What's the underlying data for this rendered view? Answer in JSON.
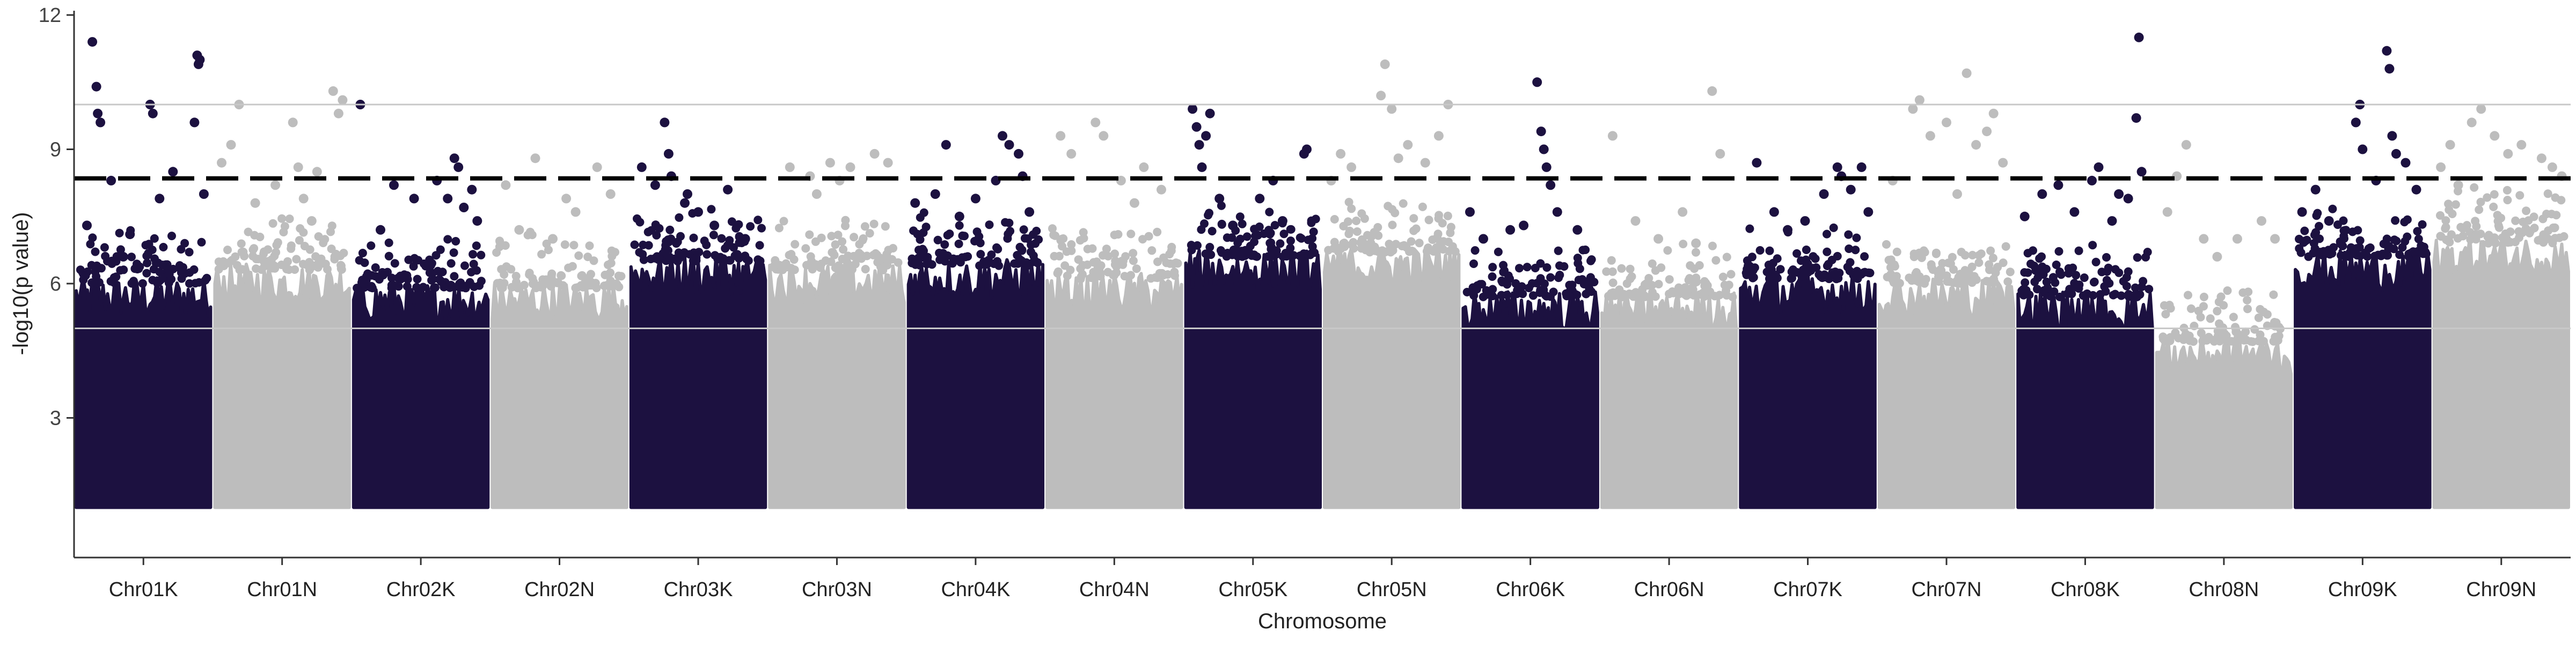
{
  "chart_data": {
    "type": "scatter",
    "title": "",
    "xlabel": "Chromosome",
    "ylabel": "-log10(p value)",
    "ylim": [
      0,
      12
    ],
    "yticks": [
      3,
      6,
      9,
      12
    ],
    "grid": "horizontal reference lines only",
    "legend": "none",
    "reference_lines": [
      {
        "name": "",
        "y": 5,
        "style": "solid",
        "color": "#c8c8c8"
      },
      {
        "name": "",
        "y": 10,
        "style": "solid",
        "color": "#c8c8c8"
      },
      {
        "name": "",
        "y": 8.35,
        "style": "dashed",
        "color": "#000000"
      }
    ],
    "colors": {
      "odd": "#1c1140",
      "even": "#bdbdbd"
    },
    "categories": [
      "Chr01K",
      "Chr01N",
      "Chr02K",
      "Chr02N",
      "Chr03K",
      "Chr03N",
      "Chr04K",
      "Chr04N",
      "Chr05K",
      "Chr05N",
      "Chr06K",
      "Chr06N",
      "Chr07K",
      "Chr07N",
      "Chr08K",
      "Chr08N",
      "Chr09K",
      "Chr09N"
    ],
    "series": [
      {
        "category": "Chr01K",
        "color": "#1c1140",
        "bulk_top": 6.3,
        "min": 1.0,
        "top_points": [
          [
            0.12,
            11.4
          ],
          [
            0.15,
            10.4
          ],
          [
            0.16,
            9.8
          ],
          [
            0.18,
            9.6
          ],
          [
            0.26,
            8.3
          ],
          [
            0.55,
            10.0
          ],
          [
            0.57,
            9.8
          ],
          [
            0.62,
            7.9
          ],
          [
            0.72,
            8.5
          ],
          [
            0.88,
            9.6
          ],
          [
            0.9,
            11.1
          ],
          [
            0.92,
            11.0
          ],
          [
            0.95,
            8.0
          ],
          [
            0.91,
            10.9
          ],
          [
            0.4,
            7.1
          ],
          [
            0.35,
            6.6
          ],
          [
            0.08,
            7.3
          ]
        ]
      },
      {
        "category": "Chr01N",
        "color": "#bdbdbd",
        "bulk_top": 6.6,
        "min": 1.0,
        "top_points": [
          [
            0.05,
            8.7
          ],
          [
            0.12,
            9.1
          ],
          [
            0.18,
            10.0
          ],
          [
            0.3,
            7.8
          ],
          [
            0.45,
            8.2
          ],
          [
            0.58,
            9.6
          ],
          [
            0.62,
            8.6
          ],
          [
            0.76,
            8.5
          ],
          [
            0.88,
            10.3
          ],
          [
            0.92,
            9.8
          ],
          [
            0.95,
            10.1
          ],
          [
            0.72,
            7.4
          ],
          [
            0.66,
            7.9
          ]
        ]
      },
      {
        "category": "Chr02K",
        "color": "#1c1140",
        "bulk_top": 6.2,
        "min": 1.0,
        "top_points": [
          [
            0.05,
            10.0
          ],
          [
            0.3,
            8.2
          ],
          [
            0.45,
            7.9
          ],
          [
            0.62,
            8.3
          ],
          [
            0.75,
            8.8
          ],
          [
            0.78,
            8.6
          ],
          [
            0.82,
            7.7
          ],
          [
            0.88,
            8.1
          ],
          [
            0.92,
            7.4
          ],
          [
            0.2,
            7.2
          ],
          [
            0.7,
            7.9
          ]
        ]
      },
      {
        "category": "Chr02N",
        "color": "#bdbdbd",
        "bulk_top": 6.2,
        "min": 1.0,
        "top_points": [
          [
            0.1,
            8.2
          ],
          [
            0.32,
            8.8
          ],
          [
            0.55,
            7.9
          ],
          [
            0.62,
            7.6
          ],
          [
            0.78,
            8.6
          ],
          [
            0.88,
            8.0
          ],
          [
            0.2,
            7.2
          ],
          [
            0.45,
            7.0
          ]
        ]
      },
      {
        "category": "Chr03K",
        "color": "#1c1140",
        "bulk_top": 6.8,
        "min": 1.0,
        "top_points": [
          [
            0.08,
            8.6
          ],
          [
            0.18,
            8.2
          ],
          [
            0.25,
            9.6
          ],
          [
            0.28,
            8.9
          ],
          [
            0.3,
            8.4
          ],
          [
            0.42,
            8.0
          ],
          [
            0.5,
            7.6
          ],
          [
            0.62,
            7.3
          ],
          [
            0.72,
            8.1
          ],
          [
            0.85,
            7.0
          ],
          [
            0.4,
            7.8
          ]
        ]
      },
      {
        "category": "Chr03N",
        "color": "#bdbdbd",
        "bulk_top": 6.6,
        "min": 1.0,
        "top_points": [
          [
            0.15,
            8.6
          ],
          [
            0.3,
            8.4
          ],
          [
            0.45,
            8.7
          ],
          [
            0.6,
            8.6
          ],
          [
            0.78,
            8.9
          ],
          [
            0.88,
            8.7
          ],
          [
            0.52,
            8.3
          ],
          [
            0.35,
            8.0
          ]
        ]
      },
      {
        "category": "Chr04K",
        "color": "#1c1140",
        "bulk_top": 6.7,
        "min": 1.0,
        "top_points": [
          [
            0.05,
            7.8
          ],
          [
            0.2,
            8.0
          ],
          [
            0.28,
            9.1
          ],
          [
            0.38,
            7.5
          ],
          [
            0.5,
            7.9
          ],
          [
            0.65,
            8.3
          ],
          [
            0.7,
            9.3
          ],
          [
            0.75,
            9.1
          ],
          [
            0.82,
            8.9
          ],
          [
            0.85,
            8.4
          ],
          [
            0.9,
            7.6
          ]
        ]
      },
      {
        "category": "Chr04N",
        "color": "#bdbdbd",
        "bulk_top": 6.4,
        "min": 1.0,
        "top_points": [
          [
            0.1,
            9.3
          ],
          [
            0.18,
            8.9
          ],
          [
            0.36,
            9.6
          ],
          [
            0.42,
            9.3
          ],
          [
            0.55,
            8.3
          ],
          [
            0.72,
            8.6
          ],
          [
            0.85,
            8.1
          ],
          [
            0.65,
            7.8
          ]
        ]
      },
      {
        "category": "Chr05K",
        "color": "#1c1140",
        "bulk_top": 6.9,
        "min": 1.0,
        "top_points": [
          [
            0.05,
            9.9
          ],
          [
            0.08,
            9.5
          ],
          [
            0.1,
            9.1
          ],
          [
            0.12,
            8.6
          ],
          [
            0.15,
            9.3
          ],
          [
            0.18,
            9.8
          ],
          [
            0.25,
            7.9
          ],
          [
            0.35,
            7.3
          ],
          [
            0.55,
            7.9
          ],
          [
            0.65,
            8.3
          ],
          [
            0.9,
            9.0
          ],
          [
            0.88,
            8.9
          ],
          [
            0.72,
            7.4
          ]
        ]
      },
      {
        "category": "Chr05N",
        "color": "#bdbdbd",
        "bulk_top": 7.0,
        "min": 1.0,
        "top_points": [
          [
            0.05,
            8.3
          ],
          [
            0.12,
            8.9
          ],
          [
            0.2,
            8.6
          ],
          [
            0.42,
            10.2
          ],
          [
            0.45,
            10.9
          ],
          [
            0.5,
            9.9
          ],
          [
            0.62,
            9.1
          ],
          [
            0.75,
            8.7
          ],
          [
            0.85,
            9.3
          ],
          [
            0.92,
            10.0
          ],
          [
            0.55,
            8.8
          ]
        ]
      },
      {
        "category": "Chr06K",
        "color": "#1c1140",
        "bulk_top": 6.0,
        "min": 1.0,
        "top_points": [
          [
            0.05,
            7.6
          ],
          [
            0.15,
            7.0
          ],
          [
            0.35,
            7.2
          ],
          [
            0.55,
            10.5
          ],
          [
            0.58,
            9.4
          ],
          [
            0.6,
            9.0
          ],
          [
            0.62,
            8.6
          ],
          [
            0.65,
            8.2
          ],
          [
            0.7,
            7.6
          ],
          [
            0.85,
            7.2
          ],
          [
            0.45,
            7.3
          ]
        ]
      },
      {
        "category": "Chr06N",
        "color": "#bdbdbd",
        "bulk_top": 6.0,
        "min": 1.0,
        "top_points": [
          [
            0.08,
            9.3
          ],
          [
            0.25,
            7.4
          ],
          [
            0.42,
            7.0
          ],
          [
            0.6,
            7.6
          ],
          [
            0.82,
            10.3
          ],
          [
            0.88,
            8.9
          ],
          [
            0.7,
            6.9
          ]
        ]
      },
      {
        "category": "Chr07K",
        "color": "#1c1140",
        "bulk_top": 6.4,
        "min": 1.0,
        "top_points": [
          [
            0.12,
            8.7
          ],
          [
            0.25,
            7.6
          ],
          [
            0.48,
            7.4
          ],
          [
            0.62,
            8.0
          ],
          [
            0.72,
            8.6
          ],
          [
            0.75,
            8.4
          ],
          [
            0.82,
            8.1
          ],
          [
            0.9,
            8.6
          ],
          [
            0.95,
            7.6
          ],
          [
            0.35,
            7.2
          ]
        ]
      },
      {
        "category": "Chr07N",
        "color": "#bdbdbd",
        "bulk_top": 6.3,
        "min": 1.0,
        "top_points": [
          [
            0.1,
            8.3
          ],
          [
            0.25,
            9.9
          ],
          [
            0.3,
            10.1
          ],
          [
            0.38,
            9.3
          ],
          [
            0.5,
            9.6
          ],
          [
            0.65,
            10.7
          ],
          [
            0.72,
            9.1
          ],
          [
            0.8,
            9.4
          ],
          [
            0.85,
            9.8
          ],
          [
            0.92,
            8.7
          ],
          [
            0.58,
            8.0
          ]
        ]
      },
      {
        "category": "Chr08K",
        "color": "#1c1140",
        "bulk_top": 6.0,
        "min": 1.0,
        "top_points": [
          [
            0.05,
            7.5
          ],
          [
            0.18,
            8.0
          ],
          [
            0.3,
            8.2
          ],
          [
            0.42,
            7.6
          ],
          [
            0.55,
            8.3
          ],
          [
            0.6,
            8.6
          ],
          [
            0.7,
            7.4
          ],
          [
            0.82,
            7.9
          ],
          [
            0.88,
            9.7
          ],
          [
            0.9,
            11.5
          ],
          [
            0.92,
            8.5
          ],
          [
            0.75,
            8.0
          ]
        ]
      },
      {
        "category": "Chr08N",
        "color": "#bdbdbd",
        "bulk_top": 5.0,
        "min": 1.0,
        "top_points": [
          [
            0.08,
            7.6
          ],
          [
            0.15,
            8.4
          ],
          [
            0.22,
            9.1
          ],
          [
            0.35,
            7.0
          ],
          [
            0.45,
            6.6
          ],
          [
            0.6,
            7.0
          ],
          [
            0.78,
            7.4
          ],
          [
            0.88,
            7.0
          ]
        ]
      },
      {
        "category": "Chr09K",
        "color": "#1c1140",
        "bulk_top": 6.9,
        "min": 1.0,
        "top_points": [
          [
            0.05,
            7.6
          ],
          [
            0.15,
            8.1
          ],
          [
            0.25,
            7.4
          ],
          [
            0.45,
            9.6
          ],
          [
            0.48,
            10.0
          ],
          [
            0.5,
            9.0
          ],
          [
            0.68,
            11.2
          ],
          [
            0.7,
            10.8
          ],
          [
            0.72,
            9.3
          ],
          [
            0.75,
            8.9
          ],
          [
            0.82,
            8.7
          ],
          [
            0.9,
            8.1
          ],
          [
            0.6,
            8.3
          ]
        ]
      },
      {
        "category": "Chr09N",
        "color": "#bdbdbd",
        "bulk_top": 7.2,
        "min": 1.0,
        "top_points": [
          [
            0.05,
            8.6
          ],
          [
            0.12,
            9.1
          ],
          [
            0.28,
            9.6
          ],
          [
            0.35,
            9.9
          ],
          [
            0.45,
            9.3
          ],
          [
            0.55,
            8.9
          ],
          [
            0.65,
            9.1
          ],
          [
            0.8,
            8.8
          ],
          [
            0.88,
            8.6
          ],
          [
            0.95,
            8.4
          ],
          [
            0.18,
            8.2
          ]
        ]
      }
    ]
  }
}
